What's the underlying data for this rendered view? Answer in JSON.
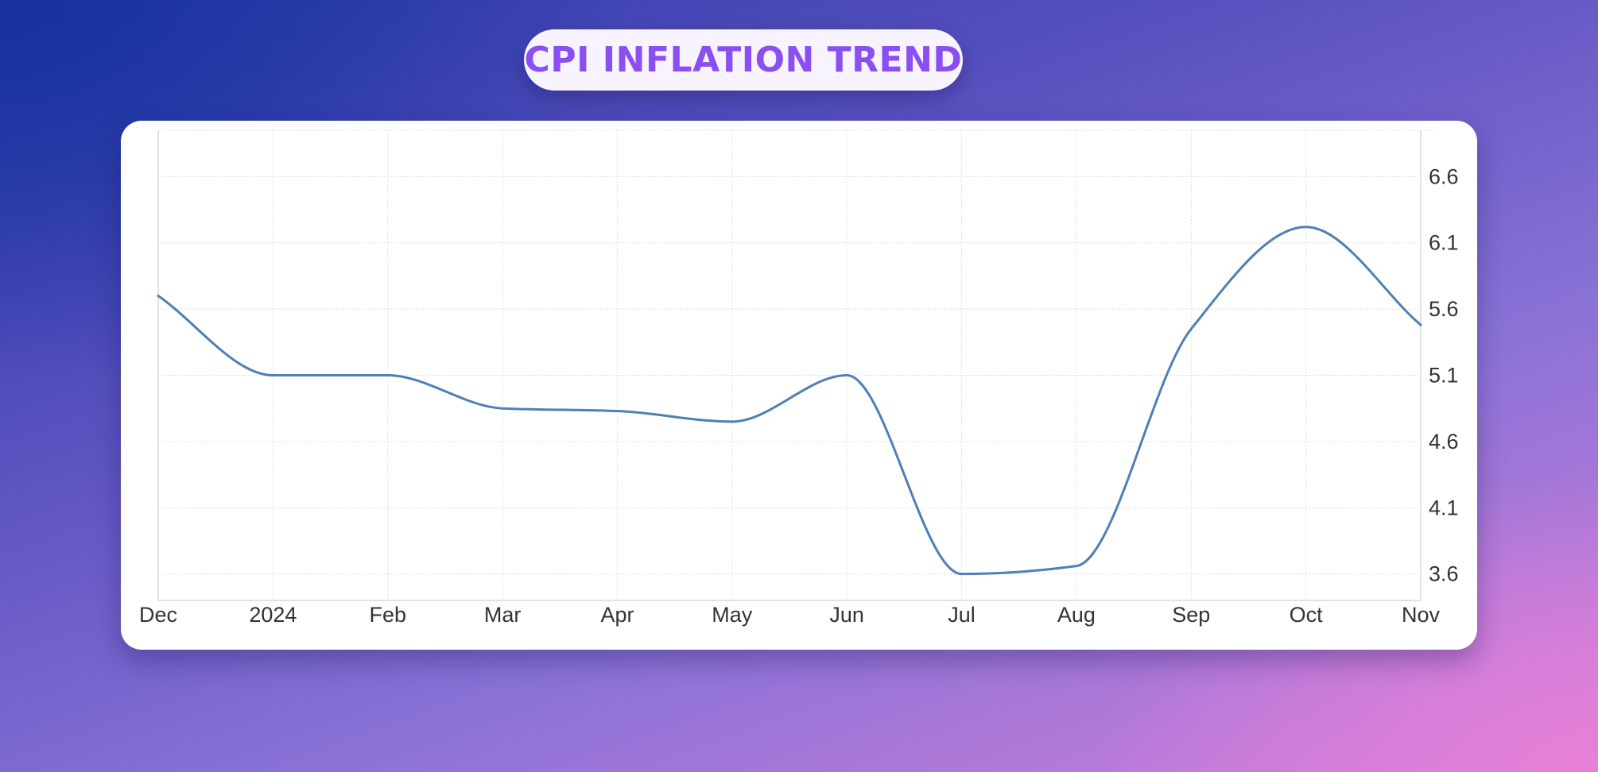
{
  "title": "CPI INFLATION TREND",
  "colors": {
    "title_text": "#8a4ff0",
    "title_pill": "#f7f3ff",
    "line": "#4f7fb5",
    "grid": "#dddddd",
    "axis_text": "#333333"
  },
  "chart_data": {
    "type": "line",
    "title": "CPI INFLATION TREND",
    "xlabel": "",
    "ylabel": "",
    "y_axis_position": "right",
    "grid": true,
    "legend": "none",
    "ylim": [
      3.4,
      6.95
    ],
    "x_tick_labels": [
      "Dec",
      "2024",
      "Feb",
      "Mar",
      "Apr",
      "May",
      "Jun",
      "Jul",
      "Aug",
      "Sep",
      "Oct",
      "Nov"
    ],
    "y_ticks": [
      3.6,
      4.1,
      4.6,
      5.1,
      5.6,
      6.1,
      6.6
    ],
    "series": [
      {
        "values": [
          5.7,
          5.1,
          5.1,
          4.85,
          4.83,
          4.75,
          5.1,
          3.6,
          3.66,
          5.45,
          6.22,
          5.48
        ]
      }
    ]
  }
}
